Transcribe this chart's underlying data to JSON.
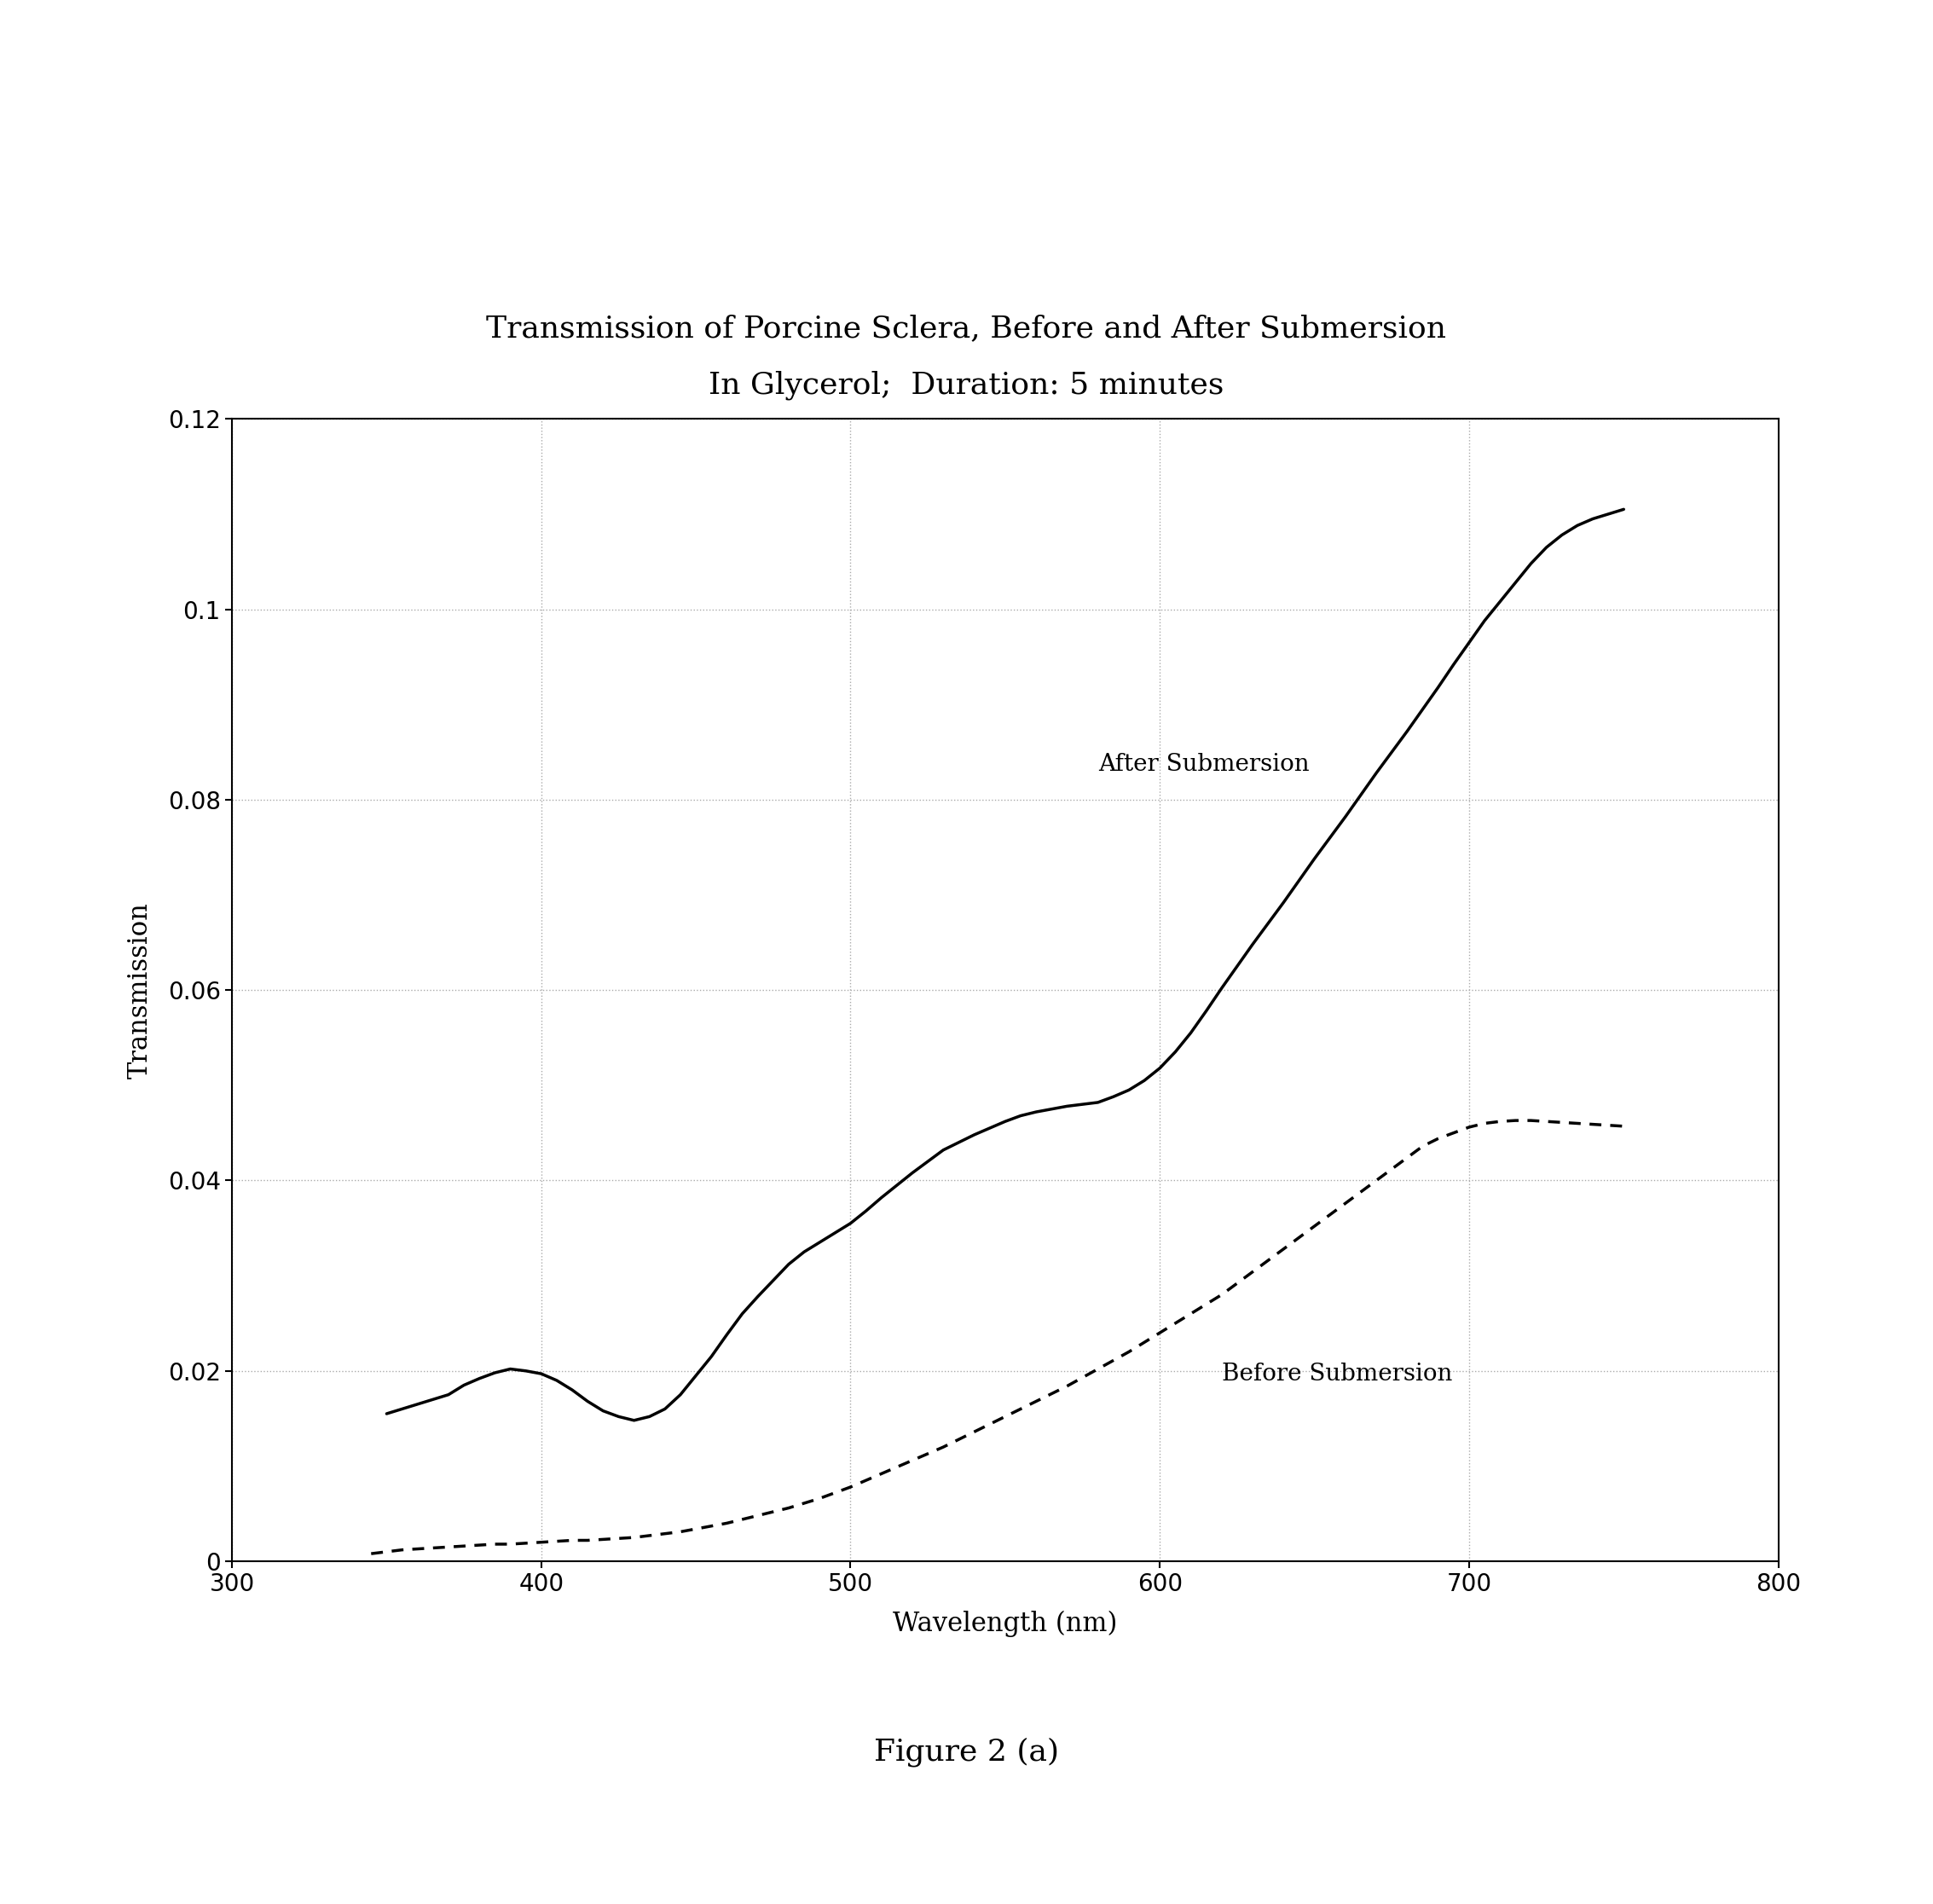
{
  "title_line1": "Transmission of Porcine Sclera, Before and After Submersion",
  "title_line2": "In Glycerol;  Duration: 5 minutes",
  "xlabel": "Wavelength (nm)",
  "ylabel": "Transmission",
  "figure_caption": "Figure 2 (a)",
  "xlim": [
    300,
    800
  ],
  "ylim": [
    0,
    0.12
  ],
  "xticks": [
    300,
    400,
    500,
    600,
    700,
    800
  ],
  "yticks": [
    0,
    0.02,
    0.04,
    0.06,
    0.08,
    0.1,
    0.12
  ],
  "after_label": "After Submersion",
  "before_label": "Before Submersion",
  "after_x": [
    350,
    360,
    370,
    375,
    380,
    385,
    390,
    395,
    400,
    405,
    410,
    415,
    420,
    425,
    430,
    435,
    440,
    445,
    450,
    455,
    460,
    465,
    470,
    475,
    480,
    485,
    490,
    495,
    500,
    505,
    510,
    515,
    520,
    525,
    530,
    535,
    540,
    545,
    550,
    555,
    560,
    565,
    570,
    575,
    580,
    585,
    590,
    595,
    600,
    605,
    610,
    615,
    620,
    625,
    630,
    635,
    640,
    645,
    650,
    655,
    660,
    665,
    670,
    675,
    680,
    685,
    690,
    695,
    700,
    705,
    710,
    715,
    720,
    725,
    730,
    735,
    740,
    745,
    750
  ],
  "after_y": [
    0.0155,
    0.0165,
    0.0175,
    0.0185,
    0.0192,
    0.0198,
    0.0202,
    0.02,
    0.0197,
    0.019,
    0.018,
    0.0168,
    0.0158,
    0.0152,
    0.0148,
    0.0152,
    0.016,
    0.0175,
    0.0195,
    0.0215,
    0.0238,
    0.026,
    0.0278,
    0.0295,
    0.0312,
    0.0325,
    0.0335,
    0.0345,
    0.0355,
    0.0368,
    0.0382,
    0.0395,
    0.0408,
    0.042,
    0.0432,
    0.044,
    0.0448,
    0.0455,
    0.0462,
    0.0468,
    0.0472,
    0.0475,
    0.0478,
    0.048,
    0.0482,
    0.0488,
    0.0495,
    0.0505,
    0.0518,
    0.0535,
    0.0555,
    0.0578,
    0.0602,
    0.0625,
    0.0648,
    0.067,
    0.0692,
    0.0715,
    0.0738,
    0.076,
    0.0782,
    0.0805,
    0.0828,
    0.085,
    0.0872,
    0.0895,
    0.0918,
    0.0942,
    0.0965,
    0.0988,
    0.1008,
    0.1028,
    0.1048,
    0.1065,
    0.1078,
    0.1088,
    0.1095,
    0.11,
    0.1105
  ],
  "before_x": [
    345,
    350,
    355,
    360,
    365,
    370,
    375,
    380,
    385,
    390,
    395,
    400,
    405,
    410,
    415,
    420,
    425,
    430,
    435,
    440,
    445,
    450,
    455,
    460,
    465,
    470,
    475,
    480,
    485,
    490,
    495,
    500,
    505,
    510,
    515,
    520,
    525,
    530,
    535,
    540,
    545,
    550,
    555,
    560,
    565,
    570,
    575,
    580,
    585,
    590,
    595,
    600,
    605,
    610,
    615,
    620,
    625,
    630,
    635,
    640,
    645,
    650,
    655,
    660,
    665,
    670,
    675,
    680,
    685,
    690,
    695,
    700,
    705,
    710,
    715,
    720,
    725,
    730,
    735,
    740,
    745,
    750
  ],
  "before_y": [
    0.0008,
    0.001,
    0.0012,
    0.0013,
    0.0014,
    0.0015,
    0.0016,
    0.0017,
    0.0018,
    0.0018,
    0.0019,
    0.002,
    0.0021,
    0.0022,
    0.0022,
    0.0023,
    0.0024,
    0.0025,
    0.0027,
    0.0029,
    0.0031,
    0.0034,
    0.0037,
    0.004,
    0.0044,
    0.0048,
    0.0052,
    0.0056,
    0.0061,
    0.0066,
    0.0072,
    0.0078,
    0.0085,
    0.0092,
    0.0099,
    0.0106,
    0.0113,
    0.012,
    0.0128,
    0.0136,
    0.0144,
    0.0152,
    0.016,
    0.0168,
    0.0176,
    0.0184,
    0.0193,
    0.0202,
    0.0211,
    0.022,
    0.023,
    0.024,
    0.025,
    0.026,
    0.027,
    0.028,
    0.0292,
    0.0304,
    0.0316,
    0.0328,
    0.034,
    0.0352,
    0.0364,
    0.0376,
    0.0388,
    0.04,
    0.0412,
    0.0424,
    0.0436,
    0.0444,
    0.045,
    0.0456,
    0.046,
    0.0462,
    0.0463,
    0.0463,
    0.0462,
    0.0461,
    0.046,
    0.0459,
    0.0458,
    0.0457
  ],
  "background_color": "#ffffff",
  "line_color": "#000000",
  "title_fontsize": 26,
  "label_fontsize": 22,
  "tick_fontsize": 20,
  "annotation_fontsize": 20,
  "caption_fontsize": 26,
  "grid_color": "#aaaaaa",
  "grid_linestyle": "dotted"
}
